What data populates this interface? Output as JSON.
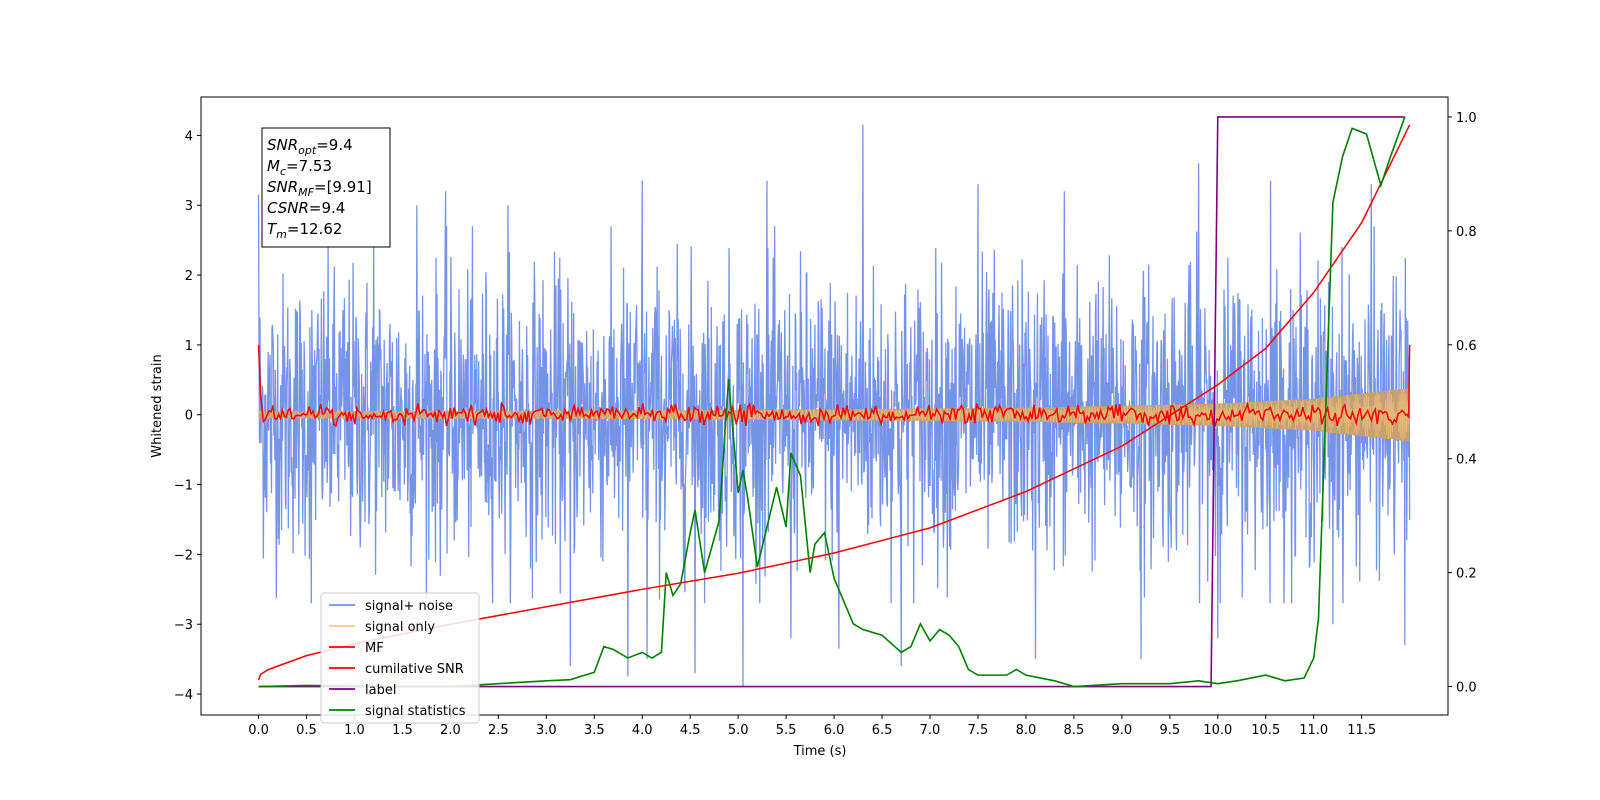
{
  "chart_data": {
    "type": "line",
    "title": "",
    "xlabel": "Time (s)",
    "ylabel": "Whitened strain",
    "y2label": "",
    "xlim": [
      -0.6,
      12.4
    ],
    "ylim": [
      -4.3,
      4.55
    ],
    "y2lim": [
      -0.05,
      1.035
    ],
    "xticks": [
      0.0,
      0.5,
      1.0,
      1.5,
      2.0,
      2.5,
      3.0,
      3.5,
      4.0,
      4.5,
      5.0,
      5.5,
      6.0,
      6.5,
      7.0,
      7.5,
      8.0,
      8.5,
      9.0,
      9.5,
      10.0,
      10.5,
      11.0,
      11.5
    ],
    "xtick_labels": [
      "0.0",
      "0.5",
      "1.0",
      "1.5",
      "2.0",
      "2.5",
      "3.0",
      "3.5",
      "4.0",
      "4.5",
      "5.0",
      "5.5",
      "6.0",
      "6.5",
      "7.0",
      "7.5",
      "8.0",
      "8.5",
      "9.0",
      "9.5",
      "10.0",
      "10.5",
      "11.0",
      "11.5"
    ],
    "yticks": [
      -4,
      -3,
      -2,
      -1,
      0,
      1,
      2,
      3,
      4
    ],
    "ytick_labels": [
      "−4",
      "−3",
      "−2",
      "−1",
      "0",
      "1",
      "2",
      "3",
      "4"
    ],
    "y2ticks": [
      0.0,
      0.2,
      0.4,
      0.6,
      0.8,
      1.0
    ],
    "y2tick_labels": [
      "0.0",
      "0.2",
      "0.4",
      "0.6",
      "0.8",
      "1.0"
    ],
    "legend": {
      "placement": "lower-left",
      "entries": [
        {
          "label": "signal+ noise",
          "color": "#6f8ee6"
        },
        {
          "label": "signal only",
          "color": "#ffc878"
        },
        {
          "label": "MF",
          "color": "#ff0000"
        },
        {
          "label": "cumilative SNR",
          "color": "#ff0000"
        },
        {
          "label": "label",
          "color": "#800080"
        },
        {
          "label": "signal statistics",
          "color": "#008000"
        }
      ]
    },
    "stats_box": {
      "lines": [
        {
          "base": "SNR",
          "sub": "opt",
          "value": "=9.4"
        },
        {
          "base": "M",
          "sub": "c",
          "value": "=7.53"
        },
        {
          "base": "SNR",
          "sub": "MF",
          "value": "=[9.91]"
        },
        {
          "base": "CSNR",
          "sub": "",
          "value": "=9.4"
        },
        {
          "base": "T",
          "sub": "m",
          "value": "=12.62"
        }
      ]
    },
    "series": [
      {
        "name": "signal+ noise",
        "axis": "left",
        "color": "#6f8ee6",
        "note_range": "t from 0.0 to 12.0 s, dense noise with envelope about ±2.5",
        "peaks": [
          {
            "x": 0.0,
            "y": 3.15
          },
          {
            "x": 0.55,
            "y": -2.7
          },
          {
            "x": 1.2,
            "y": 2.6
          },
          {
            "x": 1.65,
            "y": 3.0
          },
          {
            "x": 1.95,
            "y": 3.2
          },
          {
            "x": 2.6,
            "y": 3.0
          },
          {
            "x": 3.25,
            "y": -3.6
          },
          {
            "x": 3.85,
            "y": -3.75
          },
          {
            "x": 4.0,
            "y": 3.35
          },
          {
            "x": 4.05,
            "y": -3.5
          },
          {
            "x": 4.55,
            "y": -3.7
          },
          {
            "x": 5.05,
            "y": -3.9
          },
          {
            "x": 5.3,
            "y": 3.35
          },
          {
            "x": 5.55,
            "y": -3.2
          },
          {
            "x": 6.3,
            "y": 4.15
          },
          {
            "x": 6.05,
            "y": -3.35
          },
          {
            "x": 6.7,
            "y": -3.6
          },
          {
            "x": 7.5,
            "y": 3.3
          },
          {
            "x": 8.1,
            "y": -3.5
          },
          {
            "x": 8.4,
            "y": 3.2
          },
          {
            "x": 9.2,
            "y": -3.5
          },
          {
            "x": 9.8,
            "y": 3.6
          },
          {
            "x": 10.0,
            "y": -3.2
          },
          {
            "x": 10.55,
            "y": 3.35
          },
          {
            "x": 11.2,
            "y": -3.0
          },
          {
            "x": 11.6,
            "y": 3.3
          },
          {
            "x": 11.95,
            "y": -3.3
          }
        ]
      },
      {
        "name": "signal only",
        "axis": "left",
        "color": "#ffc878",
        "envelope": [
          [
            0,
            0.05
          ],
          [
            4.0,
            0.06
          ],
          [
            8.0,
            0.1
          ],
          [
            10.0,
            0.16
          ],
          [
            11.0,
            0.23
          ],
          [
            12.0,
            0.38
          ]
        ]
      },
      {
        "name": "MF",
        "axis": "left",
        "color": "#ff0000",
        "start": [
          0.0,
          1.0
        ],
        "end": [
          12.0,
          1.0
        ],
        "amplitude": 0.12
      },
      {
        "name": "cumilative SNR",
        "axis": "left",
        "color": "#ff0000",
        "points": [
          [
            0.0,
            -3.8
          ],
          [
            0.02,
            -3.72
          ],
          [
            0.1,
            -3.65
          ],
          [
            0.5,
            -3.45
          ],
          [
            1.0,
            -3.28
          ],
          [
            2.0,
            -3.0
          ],
          [
            3.0,
            -2.75
          ],
          [
            4.0,
            -2.5
          ],
          [
            5.0,
            -2.27
          ],
          [
            6.0,
            -1.98
          ],
          [
            7.0,
            -1.62
          ],
          [
            8.0,
            -1.1
          ],
          [
            9.0,
            -0.45
          ],
          [
            10.0,
            0.43
          ],
          [
            10.5,
            0.95
          ],
          [
            11.0,
            1.75
          ],
          [
            11.5,
            2.75
          ],
          [
            12.0,
            4.15
          ]
        ]
      },
      {
        "name": "label",
        "axis": "right",
        "color": "#800080",
        "points": [
          [
            0.0,
            0.0
          ],
          [
            9.93,
            0.0
          ],
          [
            10.0,
            1.0
          ],
          [
            11.95,
            1.0
          ]
        ]
      },
      {
        "name": "signal statistics",
        "axis": "right",
        "color": "#008000",
        "points": [
          [
            0.0,
            0.0
          ],
          [
            0.5,
            0.002
          ],
          [
            1.0,
            0.001
          ],
          [
            1.5,
            0.0
          ],
          [
            2.0,
            0.0
          ],
          [
            2.5,
            0.005
          ],
          [
            3.0,
            0.01
          ],
          [
            3.25,
            0.012
          ],
          [
            3.5,
            0.025
          ],
          [
            3.6,
            0.07
          ],
          [
            3.7,
            0.065
          ],
          [
            3.85,
            0.05
          ],
          [
            4.0,
            0.06
          ],
          [
            4.1,
            0.05
          ],
          [
            4.2,
            0.06
          ],
          [
            4.25,
            0.2
          ],
          [
            4.32,
            0.16
          ],
          [
            4.4,
            0.18
          ],
          [
            4.5,
            0.27
          ],
          [
            4.55,
            0.31
          ],
          [
            4.65,
            0.2
          ],
          [
            4.8,
            0.29
          ],
          [
            4.9,
            0.54
          ],
          [
            5.0,
            0.34
          ],
          [
            5.05,
            0.38
          ],
          [
            5.1,
            0.33
          ],
          [
            5.2,
            0.21
          ],
          [
            5.3,
            0.28
          ],
          [
            5.4,
            0.35
          ],
          [
            5.5,
            0.28
          ],
          [
            5.55,
            0.41
          ],
          [
            5.65,
            0.37
          ],
          [
            5.75,
            0.2
          ],
          [
            5.8,
            0.25
          ],
          [
            5.9,
            0.27
          ],
          [
            6.0,
            0.19
          ],
          [
            6.1,
            0.15
          ],
          [
            6.2,
            0.11
          ],
          [
            6.3,
            0.1
          ],
          [
            6.5,
            0.09
          ],
          [
            6.7,
            0.06
          ],
          [
            6.8,
            0.07
          ],
          [
            6.9,
            0.11
          ],
          [
            7.0,
            0.08
          ],
          [
            7.1,
            0.1
          ],
          [
            7.2,
            0.09
          ],
          [
            7.3,
            0.07
          ],
          [
            7.4,
            0.03
          ],
          [
            7.5,
            0.02
          ],
          [
            7.8,
            0.02
          ],
          [
            7.9,
            0.03
          ],
          [
            8.0,
            0.02
          ],
          [
            8.3,
            0.01
          ],
          [
            8.5,
            0.0
          ],
          [
            9.0,
            0.005
          ],
          [
            9.5,
            0.005
          ],
          [
            9.8,
            0.01
          ],
          [
            10.0,
            0.005
          ],
          [
            10.2,
            0.01
          ],
          [
            10.5,
            0.02
          ],
          [
            10.7,
            0.01
          ],
          [
            10.9,
            0.015
          ],
          [
            11.0,
            0.05
          ],
          [
            11.05,
            0.12
          ],
          [
            11.2,
            0.85
          ],
          [
            11.3,
            0.93
          ],
          [
            11.4,
            0.98
          ],
          [
            11.55,
            0.97
          ],
          [
            11.7,
            0.88
          ],
          [
            11.8,
            0.93
          ],
          [
            11.95,
            1.0
          ]
        ]
      }
    ]
  }
}
